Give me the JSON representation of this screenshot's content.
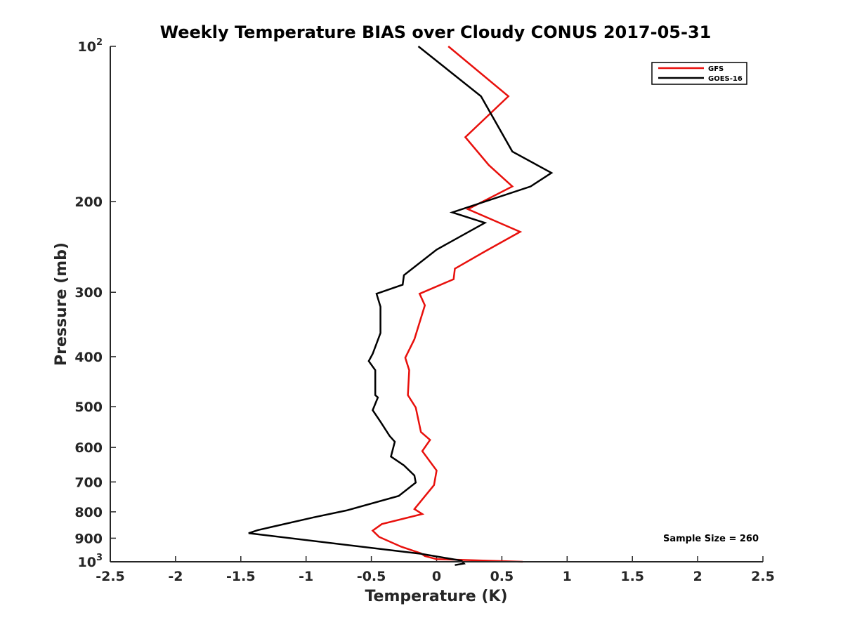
{
  "chart_data": {
    "type": "line",
    "title": "Weekly Temperature BIAS over Cloudy CONUS 2017-05-31",
    "xlabel": "Temperature (K)",
    "ylabel": "Pressure (mb)",
    "xlim": [
      -2.5,
      2.5
    ],
    "ylim": [
      1000,
      100
    ],
    "yscale": "log",
    "y_reversed": true,
    "xticks": [
      "-2.5",
      "-2",
      "-1.5",
      "-1",
      "-0.5",
      "0",
      "0.5",
      "1",
      "1.5",
      "2",
      "2.5"
    ],
    "yticks": [
      {
        "value": 100,
        "base": "10",
        "exp": "2"
      },
      {
        "value": 200,
        "label": "200"
      },
      {
        "value": 300,
        "label": "300"
      },
      {
        "value": 400,
        "label": "400"
      },
      {
        "value": 500,
        "label": "500"
      },
      {
        "value": 600,
        "label": "600"
      },
      {
        "value": 700,
        "label": "700"
      },
      {
        "value": 800,
        "label": "800"
      },
      {
        "value": 900,
        "label": "900"
      },
      {
        "value": 1000,
        "base": "10",
        "exp": "3"
      }
    ],
    "legend_position": "top-right",
    "annotation": "Sample Size = 260",
    "series": [
      {
        "name": "GFS",
        "color": "#e8100c",
        "points": [
          [
            0.09,
            100
          ],
          [
            0.55,
            125
          ],
          [
            0.22,
            150
          ],
          [
            0.4,
            170
          ],
          [
            0.58,
            187
          ],
          [
            0.24,
            207
          ],
          [
            0.64,
            229
          ],
          [
            0.37,
            250
          ],
          [
            0.14,
            270
          ],
          [
            0.13,
            283
          ],
          [
            -0.13,
            302
          ],
          [
            -0.09,
            318
          ],
          [
            -0.17,
            370
          ],
          [
            -0.24,
            402
          ],
          [
            -0.21,
            425
          ],
          [
            -0.22,
            475
          ],
          [
            -0.16,
            502
          ],
          [
            -0.12,
            560
          ],
          [
            -0.05,
            580
          ],
          [
            -0.11,
            610
          ],
          [
            0.0,
            665
          ],
          [
            -0.02,
            710
          ],
          [
            -0.17,
            790
          ],
          [
            -0.11,
            808
          ],
          [
            -0.42,
            845
          ],
          [
            -0.49,
            870
          ],
          [
            -0.44,
            895
          ],
          [
            -0.27,
            935
          ],
          [
            -0.12,
            963
          ],
          [
            -0.09,
            975
          ],
          [
            0.0,
            988
          ],
          [
            0.66,
            1000
          ]
        ]
      },
      {
        "name": "GOES-16",
        "color": "#000000",
        "points": [
          [
            -0.14,
            100
          ],
          [
            0.34,
            125
          ],
          [
            0.58,
            160
          ],
          [
            0.88,
            176
          ],
          [
            0.72,
            187
          ],
          [
            0.12,
            210
          ],
          [
            0.37,
            220
          ],
          [
            0.0,
            248
          ],
          [
            -0.25,
            278
          ],
          [
            -0.26,
            290
          ],
          [
            -0.46,
            302
          ],
          [
            -0.43,
            320
          ],
          [
            -0.43,
            360
          ],
          [
            -0.49,
            395
          ],
          [
            -0.52,
            408
          ],
          [
            -0.47,
            425
          ],
          [
            -0.47,
            475
          ],
          [
            -0.45,
            480
          ],
          [
            -0.49,
            508
          ],
          [
            -0.43,
            535
          ],
          [
            -0.36,
            570
          ],
          [
            -0.32,
            585
          ],
          [
            -0.35,
            625
          ],
          [
            -0.25,
            650
          ],
          [
            -0.17,
            680
          ],
          [
            -0.16,
            702
          ],
          [
            -0.29,
            745
          ],
          [
            -0.69,
            795
          ],
          [
            -0.94,
            820
          ],
          [
            -1.37,
            868
          ],
          [
            -1.44,
            880
          ],
          [
            -0.12,
            965
          ],
          [
            0.19,
            995
          ],
          [
            0.21,
            1008
          ],
          [
            0.14,
            1015
          ]
        ]
      }
    ]
  }
}
